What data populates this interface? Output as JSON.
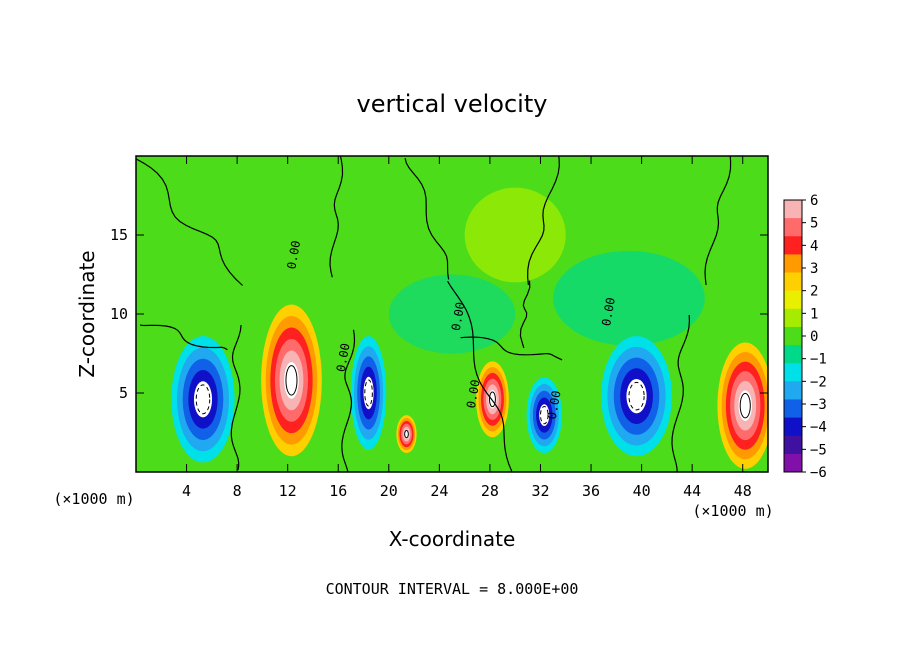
{
  "chart_data": {
    "type": "heatmap",
    "title": "vertical velocity",
    "xlabel": "X-coordinate",
    "ylabel": "Z-coordinate",
    "x_unit_label": "(×1000 m)",
    "x_unit_label_right": "(×1000 m)",
    "footer": "CONTOUR INTERVAL = 8.000E+00",
    "xlim": [
      0,
      50
    ],
    "ylim": [
      0,
      20
    ],
    "x_ticks": [
      "4",
      "8",
      "12",
      "16",
      "20",
      "24",
      "28",
      "32",
      "36",
      "40",
      "44",
      "48"
    ],
    "y_ticks": [
      "5",
      "10",
      "15"
    ],
    "colorbar": {
      "labels": [
        "6",
        "5",
        "4",
        "3",
        "2",
        "1",
        "0",
        "−1",
        "−2",
        "−3",
        "−4",
        "−5",
        "−6"
      ],
      "colors": [
        "#f8b4b4",
        "#ff6b6b",
        "#ff2020",
        "#ff9a00",
        "#ffd000",
        "#e8f000",
        "#a6ec00",
        "#4cdc1a",
        "#00d88a",
        "#00e0e8",
        "#20a8f0",
        "#1060e8",
        "#1010c8",
        "#4010a0",
        "#8010a8"
      ],
      "range": [
        -6,
        6
      ]
    },
    "contour_label": "0.00",
    "features": [
      {
        "kind": "updraft",
        "x": 12.3,
        "z": 5.8,
        "wx": 2.4,
        "wz": 4.8
      },
      {
        "kind": "updraft",
        "x": 48.2,
        "z": 4.2,
        "wx": 2.2,
        "wz": 4.0
      },
      {
        "kind": "updraft",
        "x": 28.2,
        "z": 4.6,
        "wx": 1.3,
        "wz": 2.4
      },
      {
        "kind": "updraft",
        "x": 21.4,
        "z": 2.4,
        "wx": 0.8,
        "wz": 1.2
      },
      {
        "kind": "downdraft",
        "x": 5.3,
        "z": 4.6,
        "wx": 2.5,
        "wz": 4.0
      },
      {
        "kind": "downdraft",
        "x": 18.4,
        "z": 5.0,
        "wx": 1.4,
        "wz": 3.6
      },
      {
        "kind": "downdraft",
        "x": 39.6,
        "z": 4.8,
        "wx": 2.8,
        "wz": 3.8
      },
      {
        "kind": "downdraft",
        "x": 32.3,
        "z": 3.6,
        "wx": 1.4,
        "wz": 2.4
      }
    ]
  }
}
